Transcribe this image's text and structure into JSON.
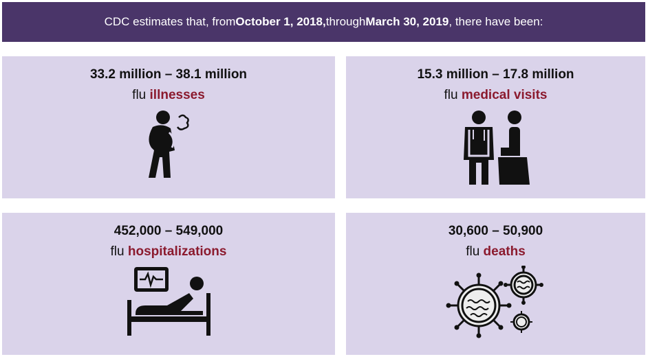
{
  "banner": {
    "prefix": "CDC estimates that, from ",
    "start_date": "October 1, 2018,",
    "middle": " through ",
    "end_date": "March 30, 2019",
    "suffix": ", there have been:"
  },
  "cards": [
    {
      "range": "33.2 million – 38.1 million",
      "prefix": "flu ",
      "highlight": "illnesses",
      "icon": "sick-person-icon"
    },
    {
      "range": "15.3 million – 17.8 million",
      "prefix": "flu ",
      "highlight": "medical visits",
      "icon": "doctor-patient-icon"
    },
    {
      "range": "452,000 – 549,000",
      "prefix": "flu ",
      "highlight": "hospitalizations",
      "icon": "hospital-bed-icon"
    },
    {
      "range": "30,600 – 50,900",
      "prefix": "flu ",
      "highlight": "deaths",
      "icon": "virus-icon"
    }
  ],
  "colors": {
    "banner": "#4a3569",
    "card": "#dad3ea",
    "highlight": "#8b1a2e"
  }
}
